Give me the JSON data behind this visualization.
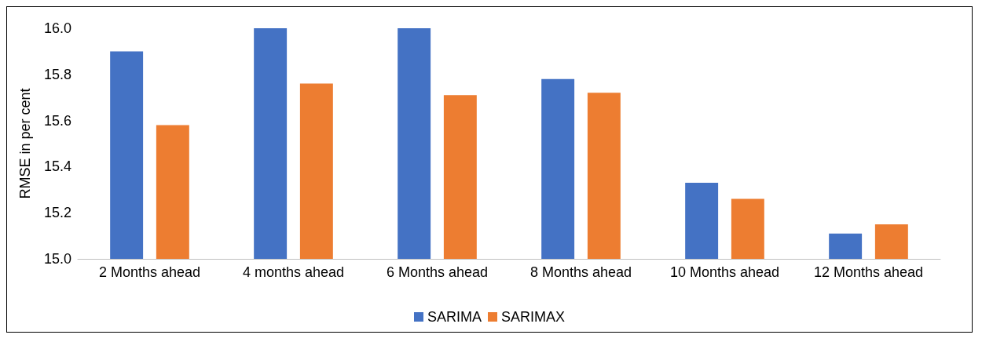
{
  "chart_data": {
    "type": "bar",
    "ylabel": "RMSE in per cent",
    "categories": [
      "2 Months ahead",
      "4 months ahead",
      "6 Months ahead",
      "8 Months ahead",
      "10 Months ahead",
      "12 Months ahead"
    ],
    "series": [
      {
        "name": "SARIMA",
        "color": "#4472c4",
        "values": [
          15.9,
          16.0,
          16.0,
          15.78,
          15.33,
          15.11
        ]
      },
      {
        "name": "SARIMAX",
        "color": "#ed7d31",
        "values": [
          15.58,
          15.76,
          15.71,
          15.72,
          15.26,
          15.15
        ]
      }
    ],
    "ylim": [
      15,
      16
    ],
    "yticks": [
      {
        "value": 15,
        "label": "15.0"
      },
      {
        "value": 15.2,
        "label": "15.2"
      },
      {
        "value": 15.4,
        "label": "15.4"
      },
      {
        "value": 15.6,
        "label": "15.6"
      },
      {
        "value": 15.8,
        "label": "15.8"
      },
      {
        "value": 16,
        "label": "16.0"
      }
    ],
    "grid": false,
    "legend": "bottom"
  }
}
